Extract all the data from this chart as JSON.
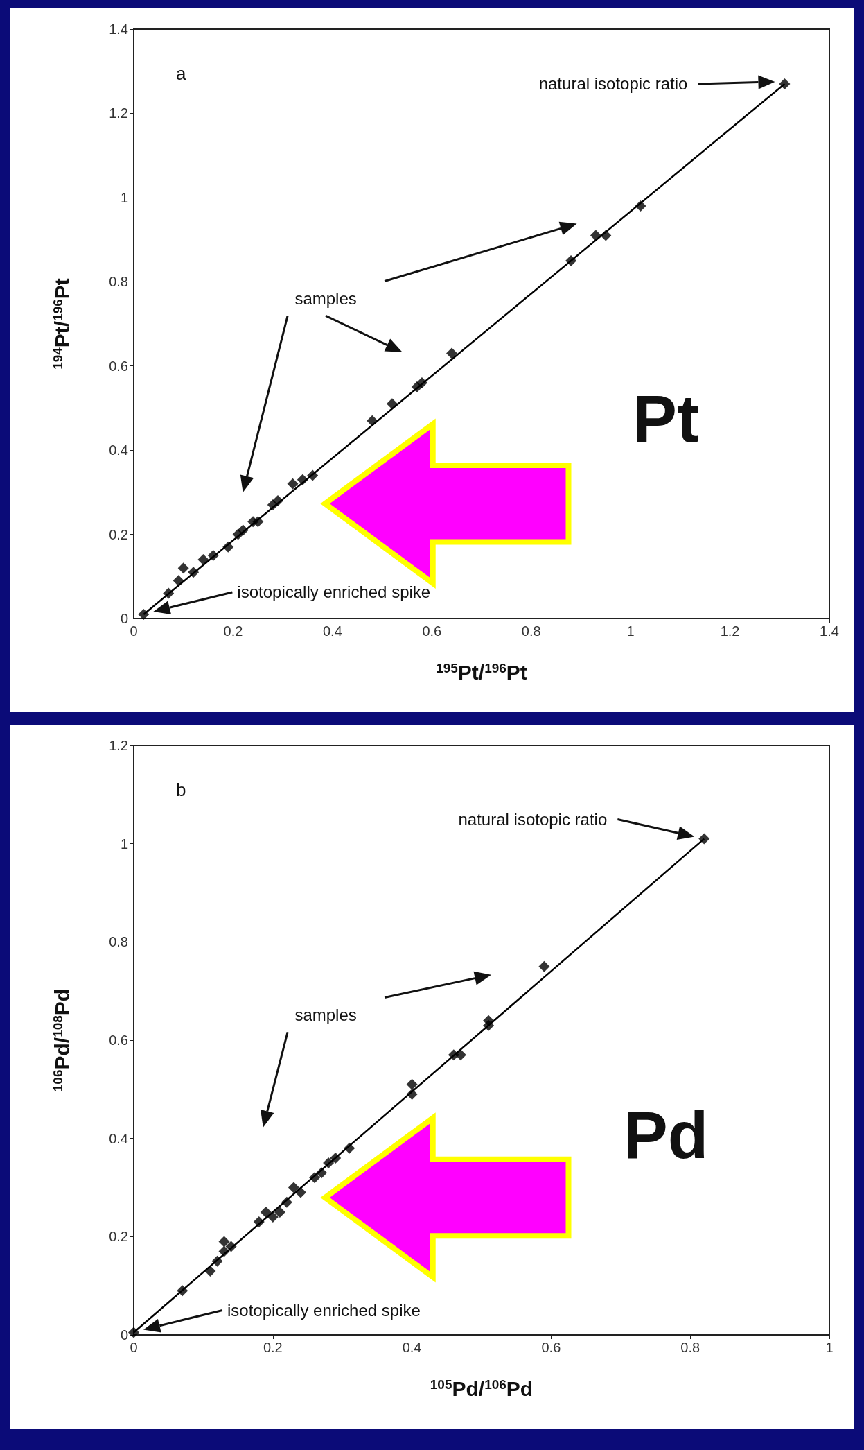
{
  "chart_data": [
    {
      "type": "scatter",
      "xlabel": "$^{195}$Pt/$^{196}$Pt",
      "ylabel": "$^{194}$Pt/$^{196}$Pt",
      "xlim": [
        0,
        1.4
      ],
      "ylim": [
        0,
        1.4
      ],
      "xticks": [
        0,
        0.2,
        0.4,
        0.6,
        0.8,
        1,
        1.2,
        1.4
      ],
      "yticks": [
        0,
        0.2,
        0.4,
        0.6,
        0.8,
        1,
        1.2,
        1.4
      ],
      "annotations": [
        "a",
        "samples",
        "natural isotopic ratio",
        "isotopically enriched spike",
        "Pt"
      ],
      "series": [
        {
          "type": "line",
          "color": "#000000",
          "marker": "none",
          "line_style": "solid",
          "x": [
            0.02,
            1.31
          ],
          "values": [
            0.01,
            1.27
          ]
        },
        {
          "color": "#000000",
          "marker": "diamond",
          "x": [
            0.02,
            0.07,
            0.09,
            0.1,
            0.12,
            0.14,
            0.16,
            0.19,
            0.21,
            0.22,
            0.24,
            0.25,
            0.28,
            0.29,
            0.32,
            0.34,
            0.36,
            0.48,
            0.52,
            0.57,
            0.58,
            0.64,
            0.88,
            0.93,
            0.95,
            1.02,
            1.31
          ],
          "values": [
            0.01,
            0.06,
            0.09,
            0.12,
            0.11,
            0.14,
            0.15,
            0.17,
            0.2,
            0.21,
            0.23,
            0.23,
            0.27,
            0.28,
            0.32,
            0.33,
            0.34,
            0.47,
            0.51,
            0.55,
            0.56,
            0.63,
            0.85,
            0.91,
            0.91,
            0.98,
            1.27
          ]
        }
      ]
    },
    {
      "type": "scatter",
      "xlabel": "$^{105}$Pd/$^{106}$Pd",
      "ylabel": "$^{106}$Pd/$^{108}$Pd",
      "xlim": [
        0,
        1
      ],
      "ylim": [
        0,
        1.2
      ],
      "xticks": [
        0,
        0.2,
        0.4,
        0.6,
        0.8,
        1
      ],
      "yticks": [
        0,
        0.2,
        0.4,
        0.6,
        0.8,
        1,
        1.2
      ],
      "annotations": [
        "b",
        "samples",
        "natural isotopic ratio",
        "isotopically enriched spike",
        "Pd"
      ],
      "series": [
        {
          "type": "line",
          "color": "#000000",
          "marker": "none",
          "line_style": "solid",
          "x": [
            0,
            0.82
          ],
          "values": [
            0.005,
            1.01
          ]
        },
        {
          "color": "#000000",
          "marker": "diamond",
          "x": [
            0,
            0.07,
            0.11,
            0.12,
            0.13,
            0.13,
            0.14,
            0.18,
            0.19,
            0.2,
            0.21,
            0.22,
            0.23,
            0.24,
            0.26,
            0.27,
            0.28,
            0.29,
            0.31,
            0.4,
            0.4,
            0.46,
            0.47,
            0.51,
            0.51,
            0.59,
            0.82
          ],
          "values": [
            0.005,
            0.09,
            0.13,
            0.15,
            0.17,
            0.19,
            0.18,
            0.23,
            0.25,
            0.24,
            0.25,
            0.27,
            0.3,
            0.29,
            0.32,
            0.33,
            0.35,
            0.36,
            0.38,
            0.49,
            0.51,
            0.57,
            0.57,
            0.63,
            0.64,
            0.75,
            1.01
          ]
        }
      ]
    }
  ]
}
